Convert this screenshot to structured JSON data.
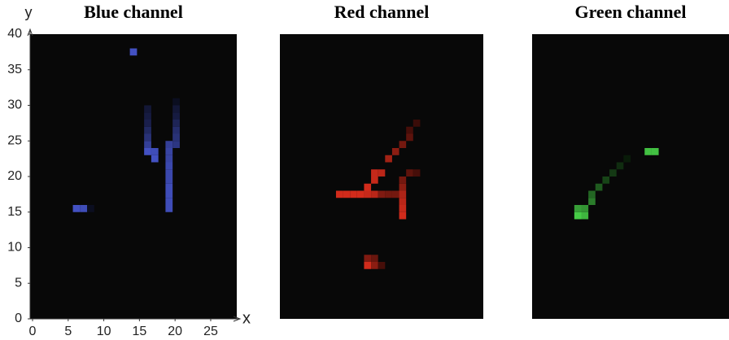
{
  "chart_data": [
    {
      "type": "pixel",
      "title": "Blue channel",
      "color": "#4a5ad8",
      "xlabel": "x",
      "ylabel": "y",
      "xlim": [
        0,
        29
      ],
      "ylim": [
        0,
        40
      ],
      "xticks": [
        0,
        5,
        10,
        15,
        20,
        25
      ],
      "yticks": [
        0,
        5,
        10,
        15,
        20,
        25,
        30,
        35,
        40
      ],
      "x": [
        14,
        6,
        7,
        8,
        19,
        19,
        19,
        19,
        19,
        19,
        19,
        19,
        19,
        19,
        16,
        16,
        16,
        16,
        16,
        16,
        16,
        17,
        17,
        20,
        20,
        20,
        20,
        20,
        20,
        20
      ],
      "y": [
        37,
        15,
        15,
        15,
        15,
        16,
        17,
        18,
        19,
        20,
        21,
        22,
        23,
        24,
        23,
        24,
        25,
        26,
        27,
        28,
        29,
        22,
        23,
        24,
        25,
        26,
        27,
        28,
        29,
        30
      ],
      "values": [
        0.9,
        0.9,
        0.85,
        0.15,
        0.85,
        0.85,
        0.85,
        0.85,
        0.8,
        0.8,
        0.8,
        0.75,
        0.75,
        0.7,
        0.9,
        0.7,
        0.55,
        0.45,
        0.35,
        0.3,
        0.25,
        0.9,
        0.85,
        0.6,
        0.55,
        0.5,
        0.4,
        0.3,
        0.25,
        0.15
      ]
    },
    {
      "type": "pixel",
      "title": "Red channel",
      "color": "#e8301e",
      "xlim": [
        0,
        29
      ],
      "ylim": [
        0,
        40
      ],
      "x": [
        8,
        9,
        10,
        11,
        12,
        13,
        12,
        13,
        13,
        14,
        14,
        15,
        16,
        17,
        17,
        17,
        17,
        17,
        17,
        18,
        19,
        15,
        16,
        17,
        18,
        18,
        19,
        12,
        13,
        12,
        13,
        14
      ],
      "y": [
        17,
        17,
        17,
        17,
        17,
        17,
        18,
        19,
        20,
        20,
        17,
        17,
        17,
        17,
        16,
        15,
        14,
        18,
        19,
        20,
        20,
        22,
        23,
        24,
        25,
        26,
        27,
        8,
        8,
        7,
        7,
        7
      ],
      "values": [
        0.9,
        0.9,
        0.9,
        0.9,
        0.85,
        0.8,
        0.9,
        0.85,
        0.85,
        0.8,
        0.55,
        0.5,
        0.5,
        0.75,
        0.8,
        0.85,
        0.9,
        0.6,
        0.5,
        0.4,
        0.3,
        0.7,
        0.6,
        0.5,
        0.4,
        0.3,
        0.25,
        0.55,
        0.45,
        0.9,
        0.6,
        0.3
      ]
    },
    {
      "type": "pixel",
      "title": "Green channel",
      "color": "#4ee24e",
      "xlim": [
        0,
        28
      ],
      "ylim": [
        0,
        40
      ],
      "x": [
        16,
        17,
        6,
        7,
        6,
        7,
        8,
        8,
        9,
        10,
        11,
        12,
        13
      ],
      "y": [
        23,
        23,
        14,
        14,
        15,
        15,
        16,
        17,
        18,
        19,
        20,
        21,
        22
      ],
      "values": [
        0.85,
        0.85,
        0.9,
        0.8,
        0.7,
        0.65,
        0.55,
        0.45,
        0.4,
        0.3,
        0.25,
        0.2,
        0.12
      ]
    }
  ]
}
